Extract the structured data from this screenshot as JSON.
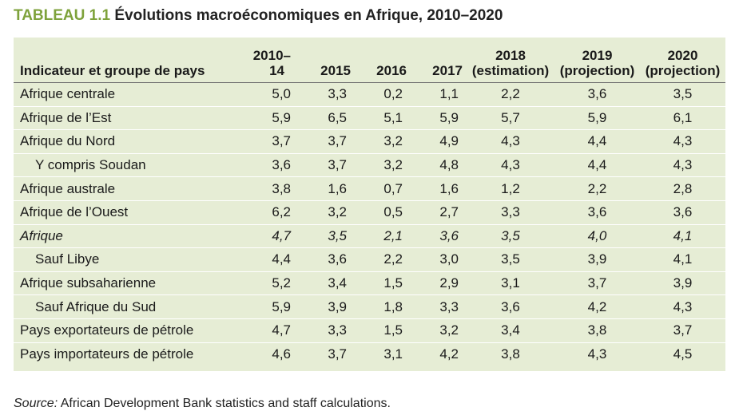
{
  "title": {
    "label": "TABLEAU 1.1",
    "text": "Évolutions macroéconomiques en Afrique, 2010–2020"
  },
  "table": {
    "headers": {
      "indicator": "Indicateur et groupe de pays",
      "y2010_line1": "2010–",
      "y2010_line2": "14",
      "y2015": "2015",
      "y2016": "2016",
      "y2017": "2017",
      "y2018_line1": "2018",
      "y2018_line2": "(estimation)",
      "y2019_line1": "2019",
      "y2019_line2": "(projection)",
      "y2020_line1": "2020",
      "y2020_line2": "(projection)"
    },
    "rows": [
      {
        "label": "Afrique centrale",
        "indent": false,
        "italic": false,
        "values": [
          "5,0",
          "3,3",
          "0,2",
          "1,1",
          "2,2",
          "3,6",
          "3,5"
        ]
      },
      {
        "label": "Afrique de l’Est",
        "indent": false,
        "italic": false,
        "values": [
          "5,9",
          "6,5",
          "5,1",
          "5,9",
          "5,7",
          "5,9",
          "6,1"
        ]
      },
      {
        "label": "Afrique du Nord",
        "indent": false,
        "italic": false,
        "values": [
          "3,7",
          "3,7",
          "3,2",
          "4,9",
          "4,3",
          "4,4",
          "4,3"
        ]
      },
      {
        "label": "Y compris Soudan",
        "indent": true,
        "italic": false,
        "values": [
          "3,6",
          "3,7",
          "3,2",
          "4,8",
          "4,3",
          "4,4",
          "4,3"
        ]
      },
      {
        "label": "Afrique australe",
        "indent": false,
        "italic": false,
        "values": [
          "3,8",
          "1,6",
          "0,7",
          "1,6",
          "1,2",
          "2,2",
          "2,8"
        ]
      },
      {
        "label": "Afrique de l’Ouest",
        "indent": false,
        "italic": false,
        "values": [
          "6,2",
          "3,2",
          "0,5",
          "2,7",
          "3,3",
          "3,6",
          "3,6"
        ]
      },
      {
        "label": "Afrique",
        "indent": false,
        "italic": true,
        "values": [
          "4,7",
          "3,5",
          "2,1",
          "3,6",
          "3,5",
          "4,0",
          "4,1"
        ]
      },
      {
        "label": "Sauf Libye",
        "indent": true,
        "italic": false,
        "values": [
          "4,4",
          "3,6",
          "2,2",
          "3,0",
          "3,5",
          "3,9",
          "4,1"
        ]
      },
      {
        "label": "Afrique subsaharienne",
        "indent": false,
        "italic": false,
        "values": [
          "5,2",
          "3,4",
          "1,5",
          "2,9",
          "3,1",
          "3,7",
          "3,9"
        ]
      },
      {
        "label": "Sauf Afrique du Sud",
        "indent": true,
        "italic": false,
        "values": [
          "5,9",
          "3,9",
          "1,8",
          "3,3",
          "3,6",
          "4,2",
          "4,3"
        ]
      },
      {
        "label": "Pays exportateurs de pétrole",
        "indent": false,
        "italic": false,
        "values": [
          "4,7",
          "3,3",
          "1,5",
          "3,2",
          "3,4",
          "3,8",
          "3,7"
        ]
      },
      {
        "label": "Pays importateurs de pétrole",
        "indent": false,
        "italic": false,
        "values": [
          "4,6",
          "3,7",
          "3,1",
          "4,2",
          "3,8",
          "4,3",
          "4,5"
        ]
      }
    ]
  },
  "source": {
    "label": "Source:",
    "text": " African Development Bank statistics and staff calculations."
  },
  "colors": {
    "title_label": "#7ea23b",
    "panel_background": "#e6edd5",
    "header_rule": "#6f6f6f",
    "row_separator": "#ffffff"
  }
}
